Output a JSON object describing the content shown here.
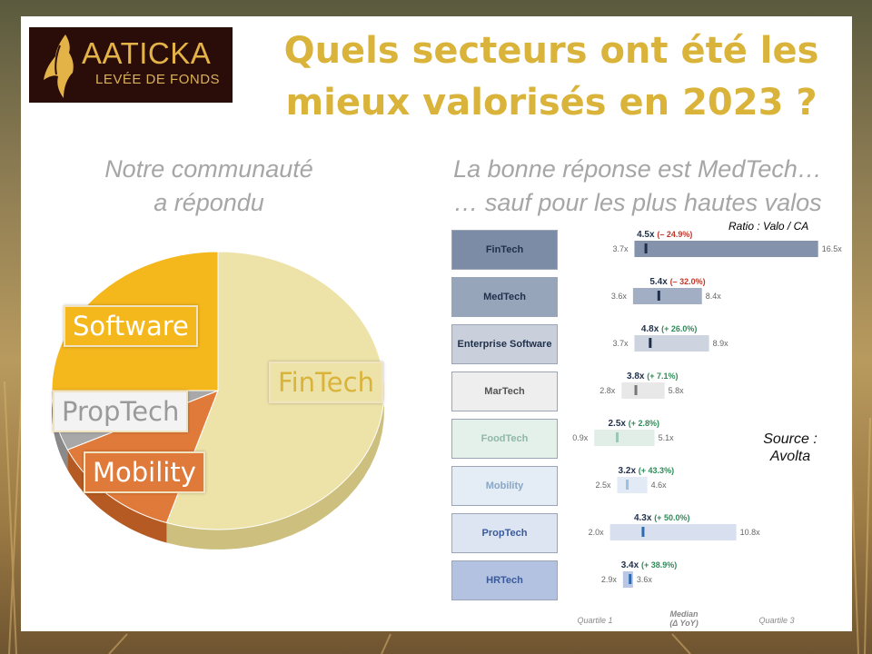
{
  "logo": {
    "name": "AATICKA",
    "subtitle": "LEVÉE DE FONDS"
  },
  "title": {
    "line1": "Quels secteurs ont été les",
    "line2": "mieux valorisés en 2023 ?"
  },
  "left_subtitle": {
    "line1": "Notre communauté",
    "line2": "a répondu"
  },
  "right_subtitle": {
    "line1": "La bonne réponse est MedTech…",
    "line2": "… sauf pour les plus hautes valos"
  },
  "ratio_note": "Ratio : Valo / CA",
  "source": {
    "line1": "Source :",
    "line2": "Avolta"
  },
  "footer": {
    "q1": "Quartile 1",
    "median_line1": "Median",
    "median_line2": "(Δ YoY)",
    "q3": "Quartile 3"
  },
  "colors": {
    "fintech": "#ede3a8",
    "software": "#f4b71c",
    "mobility": "#e07a3a",
    "proptech": "#a8a8a8",
    "title": "#d9b33a"
  },
  "chart_data": [
    {
      "type": "pie",
      "categories": [
        "FinTech",
        "Mobility",
        "PropTech",
        "Software"
      ],
      "values": [
        55,
        13,
        7,
        25
      ]
    },
    {
      "type": "bar",
      "categories": [
        "FinTech",
        "MedTech",
        "Enterprise Software",
        "MarTech",
        "FoodTech",
        "Mobility",
        "PropTech",
        "HRTech"
      ],
      "q1": [
        3.7,
        3.6,
        3.7,
        2.8,
        0.9,
        2.5,
        2.0,
        2.9
      ],
      "median": [
        4.5,
        5.4,
        4.8,
        3.8,
        2.5,
        3.2,
        4.3,
        3.4
      ],
      "q3": [
        16.5,
        8.4,
        8.9,
        5.8,
        5.1,
        4.6,
        10.8,
        3.6
      ],
      "q1_labels": [
        "3.7x",
        "3.6x",
        "3.7x",
        "2.8x",
        "0.9x",
        "2.5x",
        "2.0x",
        "2.9x"
      ],
      "median_labels": [
        "4.5x",
        "5.4x",
        "4.8x",
        "3.8x",
        "2.5x",
        "3.2x",
        "4.3x",
        "3.4x"
      ],
      "q3_labels": [
        "16.5x",
        "8.4x",
        "8.9x",
        "5.8x",
        "5.1x",
        "4.6x",
        "10.8x",
        "3.6x"
      ],
      "yoy_labels": [
        "(– 24.9%)",
        "(– 32.0%)",
        "(+ 26.0%)",
        "(+ 7.1%)",
        "(+ 2.8%)",
        "(+ 43.3%)",
        "(+ 50.0%)",
        "(+ 38.9%)"
      ],
      "yoy_colors": [
        "#c0392b",
        "#c0392b",
        "#2e8b57",
        "#2e8b57",
        "#2e8b57",
        "#2e8b57",
        "#2e8b57",
        "#2e8b57"
      ],
      "box_fills": [
        "#7d8ca6",
        "#97a5bb",
        "#c9d0dc",
        "#eeeeee",
        "#e4f0ea",
        "#e4edf6",
        "#dde4f2",
        "#b3c2e0"
      ],
      "box_text_colors": [
        "#1f2f4a",
        "#1f2f4a",
        "#1f2f4a",
        "#555555",
        "#8fb8a8",
        "#8aa6c4",
        "#3a5a9a",
        "#3a5a9a"
      ],
      "bar_fills": [
        "#8493ab",
        "#a2aec3",
        "#cdd3df",
        "#e8e8e8",
        "#e0eee7",
        "#e2ebf5",
        "#d8e0f0",
        "#b9c7e4"
      ],
      "median_colors": [
        "#1f2f4a",
        "#1f2f4a",
        "#1f2f4a",
        "#777777",
        "#9cc7b4",
        "#9cc0e0",
        "#2e6ab0",
        "#2e6ab0"
      ]
    }
  ]
}
